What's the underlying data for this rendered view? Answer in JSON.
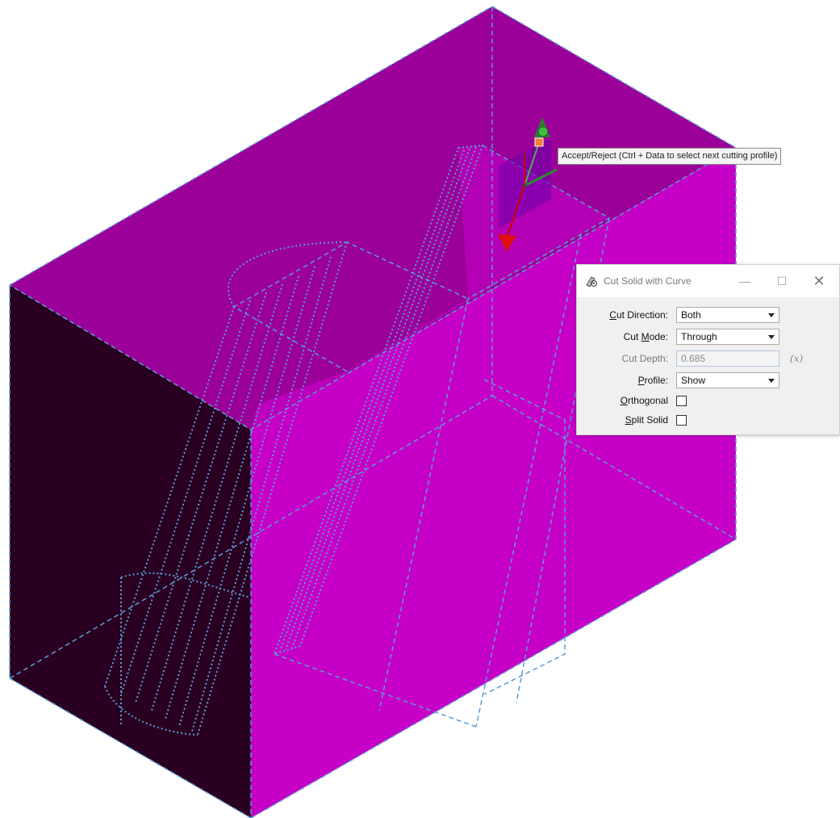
{
  "tooltip": {
    "text": "Accept/Reject (Ctrl + Data to select next cutting profile)"
  },
  "dialog": {
    "title": "Cut Solid with Curve",
    "icons": {
      "app": "cut-solid-icon",
      "minimize": "minimize-icon",
      "maximize": "maximize-icon",
      "close": "close-icon"
    },
    "cut_direction": {
      "pre": "",
      "key": "C",
      "post": "ut Direction:",
      "value": "Both"
    },
    "cut_mode": {
      "pre": "Cut ",
      "key": "M",
      "post": "ode:",
      "value": "Through"
    },
    "cut_depth": {
      "label": "Cut Depth:",
      "value": "0.685",
      "fx": "(x)"
    },
    "profile": {
      "pre": "",
      "key": "P",
      "post": "rofile:",
      "value": "Show"
    },
    "orthogonal": {
      "pre": "",
      "key": "O",
      "post": "rthogonal",
      "checked": false
    },
    "split_solid": {
      "pre": "",
      "key": "S",
      "post": "plit Solid",
      "checked": false
    }
  },
  "colors": {
    "solid_top": "#9b0099",
    "solid_front": "#c800c8",
    "solid_side": "#280020",
    "wire": "#5b9bd5"
  }
}
